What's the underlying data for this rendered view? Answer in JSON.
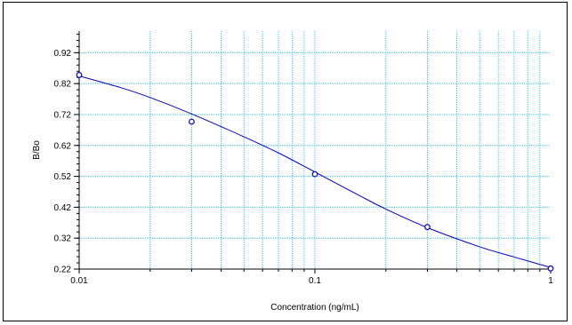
{
  "chart_data": {
    "type": "scatter",
    "title": "",
    "xlabel": "Concentration (ng/mL)",
    "ylabel": "B/Bo",
    "x_scale": "log",
    "xlim": [
      0.01,
      1
    ],
    "ylim": [
      0.22,
      0.99
    ],
    "grid": true,
    "legend": "none",
    "x_ticks": [
      {
        "value": 0.01,
        "label": "0.01"
      },
      {
        "value": 0.1,
        "label": "0.1"
      },
      {
        "value": 1,
        "label": "1"
      }
    ],
    "y_ticks": [
      {
        "value": 0.22,
        "label": "0.22"
      },
      {
        "value": 0.32,
        "label": "0.32"
      },
      {
        "value": 0.42,
        "label": "0.42"
      },
      {
        "value": 0.52,
        "label": "0.52"
      },
      {
        "value": 0.62,
        "label": "0.62"
      },
      {
        "value": 0.72,
        "label": "0.72"
      },
      {
        "value": 0.82,
        "label": "0.82"
      },
      {
        "value": 0.92,
        "label": "0.92"
      }
    ],
    "points": [
      {
        "x": 0.01,
        "y": 0.848
      },
      {
        "x": 0.03,
        "y": 0.697
      },
      {
        "x": 0.1,
        "y": 0.527
      },
      {
        "x": 0.3,
        "y": 0.356
      },
      {
        "x": 1,
        "y": 0.222
      }
    ],
    "fit_curve": [
      {
        "x": 0.01,
        "y": 0.845
      },
      {
        "x": 0.015,
        "y": 0.807
      },
      {
        "x": 0.02,
        "y": 0.775
      },
      {
        "x": 0.03,
        "y": 0.722
      },
      {
        "x": 0.05,
        "y": 0.648
      },
      {
        "x": 0.07,
        "y": 0.596
      },
      {
        "x": 0.1,
        "y": 0.534
      },
      {
        "x": 0.15,
        "y": 0.463
      },
      {
        "x": 0.2,
        "y": 0.414
      },
      {
        "x": 0.3,
        "y": 0.354
      },
      {
        "x": 0.5,
        "y": 0.292
      },
      {
        "x": 0.7,
        "y": 0.259
      },
      {
        "x": 1,
        "y": 0.225
      }
    ],
    "colors": {
      "grid": "#33ccff",
      "series": "#0000cc",
      "axis": "#000000"
    }
  }
}
